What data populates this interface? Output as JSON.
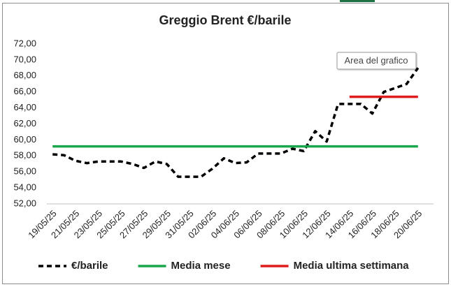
{
  "chart_data": {
    "type": "line",
    "title": "Greggio Brent €/barile",
    "tooltip": "Area del grafico",
    "categories": [
      "19/05/25",
      null,
      "21/05/25",
      null,
      "23/05/25",
      null,
      "25/05/25",
      null,
      "27/05/25",
      null,
      "29/05/25",
      null,
      "31/05/25",
      null,
      "02/06/25",
      null,
      "04/06/25",
      null,
      "06/06/25",
      null,
      "08/06/25",
      null,
      "10/06/25",
      null,
      "12/06/25",
      null,
      "14/06/25",
      null,
      "16/06/25",
      null,
      "18/06/25",
      null,
      "20/06/25"
    ],
    "series": [
      {
        "name": "€/barile",
        "color": "#000000",
        "dashed": true,
        "values": [
          58.2,
          58.1,
          57.4,
          57.1,
          57.3,
          57.3,
          57.3,
          57.0,
          56.5,
          57.3,
          57.0,
          55.4,
          55.4,
          55.4,
          56.4,
          57.7,
          57.1,
          57.2,
          58.3,
          58.3,
          58.3,
          58.9,
          58.6,
          61.1,
          59.8,
          64.5,
          64.5,
          64.5,
          63.3,
          66.0,
          66.5,
          67.0,
          69.0
        ]
      },
      {
        "name": "Media mese",
        "color": "#1aa64a",
        "dashed": false,
        "values": [
          59.2,
          59.2,
          59.2,
          59.2,
          59.2,
          59.2,
          59.2,
          59.2,
          59.2,
          59.2,
          59.2,
          59.2,
          59.2,
          59.2,
          59.2,
          59.2,
          59.2,
          59.2,
          59.2,
          59.2,
          59.2,
          59.2,
          59.2,
          59.2,
          59.2,
          59.2,
          59.2,
          59.2,
          59.2,
          59.2,
          59.2,
          59.2,
          59.2
        ]
      },
      {
        "name": "Media ultima settimana",
        "color": "#e01b1b",
        "dashed": false,
        "values": [
          null,
          null,
          null,
          null,
          null,
          null,
          null,
          null,
          null,
          null,
          null,
          null,
          null,
          null,
          null,
          null,
          null,
          null,
          null,
          null,
          null,
          null,
          null,
          null,
          null,
          null,
          65.4,
          65.4,
          65.4,
          65.4,
          65.4,
          65.4,
          65.4
        ]
      }
    ],
    "ylim": [
      52,
      72
    ],
    "yticks": [
      {
        "value": 52,
        "label": "52,00"
      },
      {
        "value": 54,
        "label": "54,00"
      },
      {
        "value": 56,
        "label": "56,00"
      },
      {
        "value": 58,
        "label": "58,00"
      },
      {
        "value": 60,
        "label": "60,00"
      },
      {
        "value": 62,
        "label": "62,00"
      },
      {
        "value": 64,
        "label": "64,00"
      },
      {
        "value": 66,
        "label": "66,00"
      },
      {
        "value": 68,
        "label": "68,00"
      },
      {
        "value": 70,
        "label": "70,00"
      },
      {
        "value": 72,
        "label": "72,00"
      }
    ],
    "grid": false,
    "legend": "bottom"
  }
}
